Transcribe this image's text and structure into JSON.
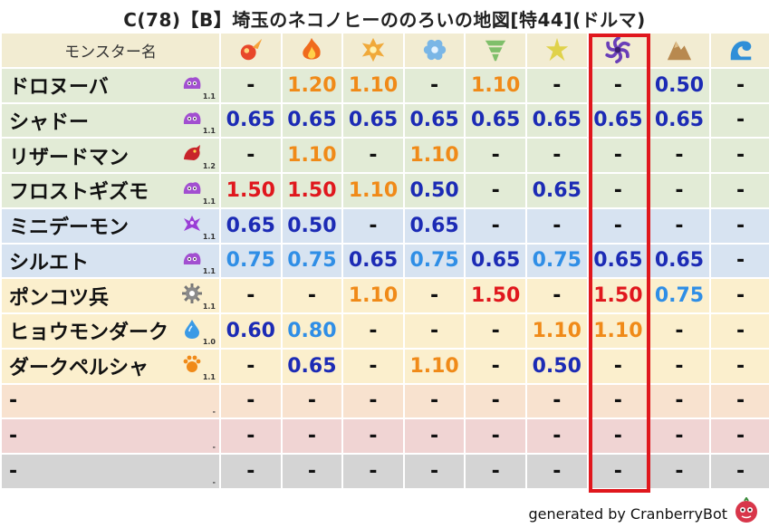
{
  "title": "C(78)【B】埼玉のネコノヒーののろいの地図[特44](ドルマ)",
  "header_name": "モンスター名",
  "elements": [
    {
      "name": "fire-ball-icon",
      "color": "#e8472a"
    },
    {
      "name": "flame-icon",
      "color": "#f06a1c"
    },
    {
      "name": "explosion-icon",
      "color": "#f0a93a"
    },
    {
      "name": "ice-flower-icon",
      "color": "#7ab6e6"
    },
    {
      "name": "tornado-icon",
      "color": "#7fbf6a"
    },
    {
      "name": "lightning-icon",
      "color": "#e0d24a"
    },
    {
      "name": "darkness-swirl-icon",
      "color": "#6a3fb8"
    },
    {
      "name": "rock-icon",
      "color": "#b8894f"
    },
    {
      "name": "water-wave-icon",
      "color": "#2f8fd8"
    }
  ],
  "colors": {
    "row_green": "#e2ebd6",
    "row_blue": "#d7e3f1",
    "row_yellow": "#fbefcd",
    "row_peach": "#f8e2cf",
    "row_pink": "#f0d4d3",
    "row_gray": "#d4d4d4",
    "val_dark_blue": "#1c2bb5",
    "val_blue": "#2f8ee6",
    "val_orange": "#f08a18",
    "val_red": "#e0171d",
    "val_dash": "#111111",
    "highlight": "#e0171d"
  },
  "rows": [
    {
      "name": "ドロヌーバ",
      "icon": "slime-monster-icon",
      "level": "1.1",
      "bg": "green",
      "values": [
        "-",
        "1.20",
        "1.10",
        "-",
        "1.10",
        "-",
        "-",
        "0.50",
        "-"
      ],
      "colors": [
        "dash",
        "orange",
        "orange",
        "dash",
        "orange",
        "dash",
        "dash",
        "dark_blue",
        "dash"
      ]
    },
    {
      "name": "シャドー",
      "icon": "slime-monster-icon",
      "level": "1.1",
      "bg": "green",
      "values": [
        "0.65",
        "0.65",
        "0.65",
        "0.65",
        "0.65",
        "0.65",
        "0.65",
        "0.65",
        "-"
      ],
      "colors": [
        "dark_blue",
        "dark_blue",
        "dark_blue",
        "dark_blue",
        "dark_blue",
        "dark_blue",
        "dark_blue",
        "dark_blue",
        "dash"
      ]
    },
    {
      "name": "リザードマン",
      "icon": "dragon-icon",
      "level": "1.2",
      "bg": "green",
      "values": [
        "-",
        "1.10",
        "-",
        "1.10",
        "-",
        "-",
        "-",
        "-",
        "-"
      ],
      "colors": [
        "dash",
        "orange",
        "dash",
        "orange",
        "dash",
        "dash",
        "dash",
        "dash",
        "dash"
      ]
    },
    {
      "name": "フロストギズモ",
      "icon": "slime-monster-icon",
      "level": "1.1",
      "bg": "green",
      "values": [
        "1.50",
        "1.50",
        "1.10",
        "0.50",
        "-",
        "0.65",
        "-",
        "-",
        "-"
      ],
      "colors": [
        "red",
        "red",
        "orange",
        "dark_blue",
        "dash",
        "dark_blue",
        "dash",
        "dash",
        "dash"
      ]
    },
    {
      "name": "ミニデーモン",
      "icon": "demon-icon",
      "level": "1.1",
      "bg": "blue",
      "values": [
        "0.65",
        "0.50",
        "-",
        "0.65",
        "-",
        "-",
        "-",
        "-",
        "-"
      ],
      "colors": [
        "dark_blue",
        "dark_blue",
        "dash",
        "dark_blue",
        "dash",
        "dash",
        "dash",
        "dash",
        "dash"
      ]
    },
    {
      "name": "シルエト",
      "icon": "slime-monster-icon",
      "level": "1.1",
      "bg": "blue",
      "values": [
        "0.75",
        "0.75",
        "0.65",
        "0.75",
        "0.65",
        "0.75",
        "0.65",
        "0.65",
        "-"
      ],
      "colors": [
        "blue",
        "blue",
        "dark_blue",
        "blue",
        "dark_blue",
        "blue",
        "dark_blue",
        "dark_blue",
        "dash"
      ]
    },
    {
      "name": "ポンコツ兵",
      "icon": "machine-gear-icon",
      "level": "1.1",
      "bg": "yellow",
      "values": [
        "-",
        "-",
        "1.10",
        "-",
        "1.50",
        "-",
        "1.50",
        "0.75",
        "-"
      ],
      "colors": [
        "dash",
        "dash",
        "orange",
        "dash",
        "red",
        "dash",
        "red",
        "blue",
        "dash"
      ]
    },
    {
      "name": "ヒョウモンダーク",
      "icon": "water-drop-icon",
      "level": "1.0",
      "bg": "yellow",
      "values": [
        "0.60",
        "0.80",
        "-",
        "-",
        "-",
        "1.10",
        "1.10",
        "-",
        "-"
      ],
      "colors": [
        "dark_blue",
        "blue",
        "dash",
        "dash",
        "dash",
        "orange",
        "orange",
        "dash",
        "dash"
      ]
    },
    {
      "name": "ダークペルシャ",
      "icon": "beast-paw-icon",
      "level": "1.1",
      "bg": "yellow",
      "values": [
        "-",
        "0.65",
        "-",
        "1.10",
        "-",
        "0.50",
        "-",
        "-",
        "-"
      ],
      "colors": [
        "dash",
        "dark_blue",
        "dash",
        "orange",
        "dash",
        "dark_blue",
        "dash",
        "dash",
        "dash"
      ]
    },
    {
      "name": "-",
      "icon": "",
      "level": "-",
      "bg": "peach",
      "values": [
        "-",
        "-",
        "-",
        "-",
        "-",
        "-",
        "-",
        "-",
        "-"
      ],
      "colors": [
        "dash",
        "dash",
        "dash",
        "dash",
        "dash",
        "dash",
        "dash",
        "dash",
        "dash"
      ]
    },
    {
      "name": "-",
      "icon": "",
      "level": "-",
      "bg": "pink",
      "values": [
        "-",
        "-",
        "-",
        "-",
        "-",
        "-",
        "-",
        "-",
        "-"
      ],
      "colors": [
        "dash",
        "dash",
        "dash",
        "dash",
        "dash",
        "dash",
        "dash",
        "dash",
        "dash"
      ]
    },
    {
      "name": "-",
      "icon": "",
      "level": "-",
      "bg": "gray",
      "values": [
        "-",
        "-",
        "-",
        "-",
        "-",
        "-",
        "-",
        "-",
        "-"
      ],
      "colors": [
        "dash",
        "dash",
        "dash",
        "dash",
        "dash",
        "dash",
        "dash",
        "dash",
        "dash"
      ]
    }
  ],
  "footer": "generated by CranberryBot",
  "footer_logo": "cranberry-mascot-icon"
}
